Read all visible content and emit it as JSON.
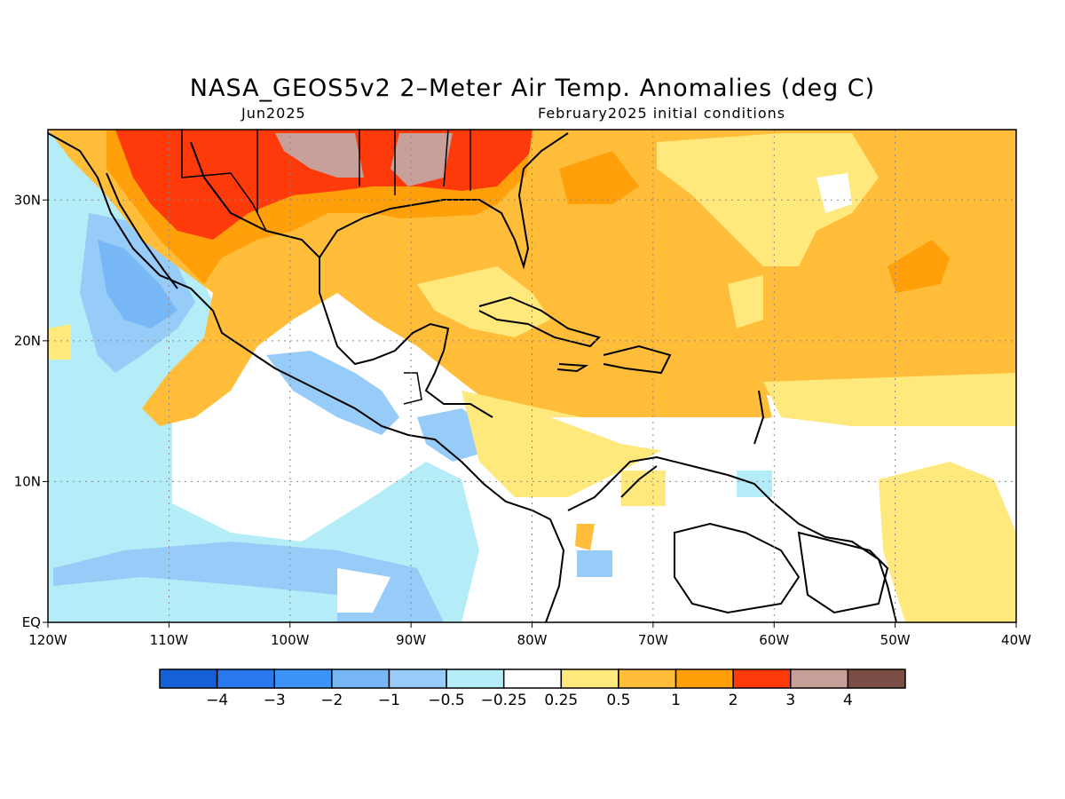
{
  "map": {
    "title": "NASA_GEOS5v2 2–Meter Air Temp. Anomalies (deg C)",
    "valid_month": "Jun2025",
    "init_conditions": "February2025 initial conditions",
    "lon_labels": [
      "120W",
      "110W",
      "100W",
      "90W",
      "80W",
      "70W",
      "60W",
      "50W",
      "40W"
    ],
    "lat_labels": [
      "EQ",
      "10N",
      "20N",
      "30N"
    ],
    "lon_range": [
      -120,
      -40
    ],
    "lat_range": [
      0,
      35
    ],
    "grid": "dotted"
  },
  "colorbar": {
    "labels": [
      "−4",
      "−3",
      "−2",
      "−1",
      "−0.5",
      "−0.25",
      "0.25",
      "0.5",
      "1",
      "2",
      "3",
      "4"
    ],
    "colors": [
      "#1560d6",
      "#2a78ee",
      "#3e93f6",
      "#78b7f6",
      "#97ccf8",
      "#b4ecf8",
      "#ffffff",
      "#ffe87c",
      "#ffbd3a",
      "#ffa00a",
      "#ff3a0a",
      "#c8a09a",
      "#7a4e44"
    ]
  },
  "palette": {
    "neg3": "#2a78ee",
    "neg1": "#78b7f6",
    "neg05": "#97ccf8",
    "neg025": "#b4ecf8",
    "zero": "#ffffff",
    "pos025": "#ffe87c",
    "pos05": "#ffbd3a",
    "pos1": "#ffa00a",
    "pos2": "#ff3a0a",
    "pos3": "#c8a09a"
  }
}
